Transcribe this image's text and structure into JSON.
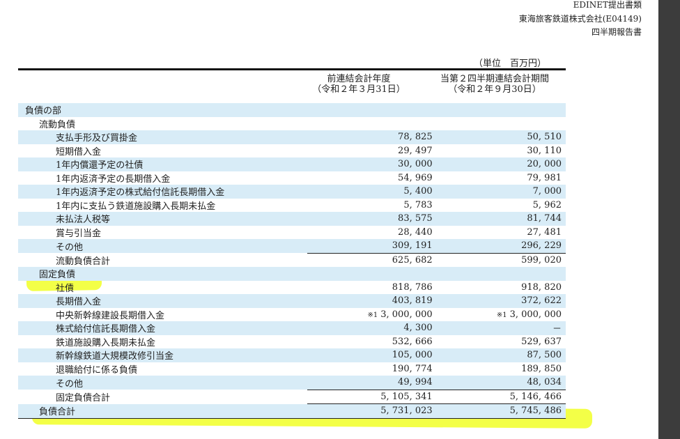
{
  "header": {
    "line1": "EDINET提出書類",
    "line2": "東海旅客鉄道株式会社(E04149)",
    "line3": "四半期報告書"
  },
  "unit": "（単位　百万円）",
  "columns": {
    "prev": {
      "line1": "前連結会計年度",
      "line2": "（令和２年３月31日）"
    },
    "curr": {
      "line1": "当第２四半期連結会計期間",
      "line2": "（令和２年９月30日）"
    }
  },
  "rows": [
    {
      "label": "負債の部",
      "prev": "",
      "curr": ""
    },
    {
      "label": "流動負債",
      "prev": "",
      "curr": ""
    },
    {
      "label": "支払手形及び買掛金",
      "prev": "78, 825",
      "curr": "50, 510"
    },
    {
      "label": "短期借入金",
      "prev": "29, 497",
      "curr": "30, 110"
    },
    {
      "label": "1年内償還予定の社債",
      "prev": "30, 000",
      "curr": "20, 000"
    },
    {
      "label": "1年内返済予定の長期借入金",
      "prev": "54, 969",
      "curr": "79, 981"
    },
    {
      "label": "1年内返済予定の株式給付信託長期借入金",
      "prev": "5, 400",
      "curr": "7, 000"
    },
    {
      "label": "1年内に支払う鉄道施設購入長期未払金",
      "prev": "5, 783",
      "curr": "5, 962"
    },
    {
      "label": "未払法人税等",
      "prev": "83, 575",
      "curr": "81, 744"
    },
    {
      "label": "賞与引当金",
      "prev": "28, 440",
      "curr": "27, 481"
    },
    {
      "label": "その他",
      "prev": "309, 191",
      "curr": "296, 229"
    },
    {
      "label": "流動負債合計",
      "prev": "625, 682",
      "curr": "599, 020"
    },
    {
      "label": "固定負債",
      "prev": "",
      "curr": ""
    },
    {
      "label": "社債",
      "prev": "818, 786",
      "curr": "918, 820"
    },
    {
      "label": "長期借入金",
      "prev": "403, 819",
      "curr": "372, 622"
    },
    {
      "label": "中央新幹線建設長期借入金",
      "prev_note": "※1",
      "prev": "3, 000, 000",
      "curr_note": "※1",
      "curr": "3, 000, 000"
    },
    {
      "label": "株式給付信託長期借入金",
      "prev": "4, 300",
      "curr": "－"
    },
    {
      "label": "鉄道施設購入長期未払金",
      "prev": "532, 666",
      "curr": "529, 637"
    },
    {
      "label": "新幹線鉄道大規模改修引当金",
      "prev": "105, 000",
      "curr": "87, 500"
    },
    {
      "label": "退職給付に係る負債",
      "prev": "190, 774",
      "curr": "189, 850"
    },
    {
      "label": "その他",
      "prev": "49, 994",
      "curr": "48, 034"
    },
    {
      "label": "固定負債合計",
      "prev": "5, 105, 341",
      "curr": "5, 146, 466"
    },
    {
      "label": "負債合計",
      "prev": "5, 731, 023",
      "curr": "5, 745, 486"
    }
  ],
  "colors": {
    "row_blue": "#d8ecf7",
    "highlight": "#eeff00"
  }
}
